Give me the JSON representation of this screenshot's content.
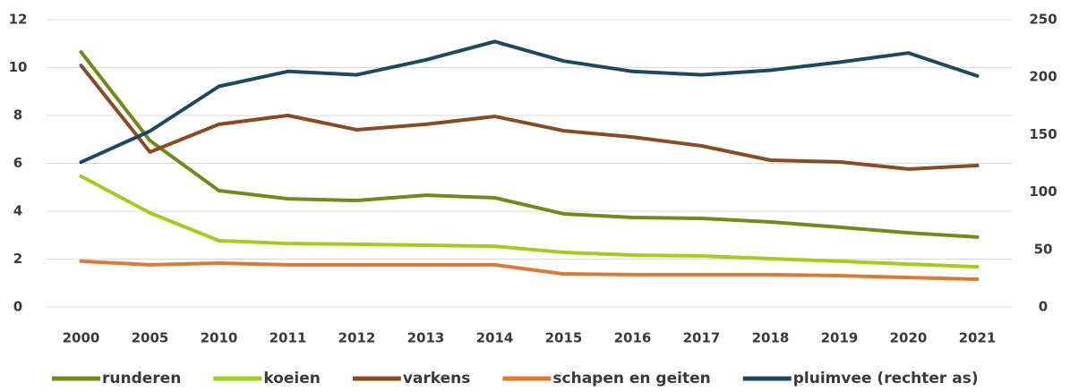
{
  "chart_data": {
    "type": "line",
    "categories": [
      "2000",
      "2005",
      "2010",
      "2011",
      "2012",
      "2013",
      "2014",
      "2015",
      "2016",
      "2017",
      "2018",
      "2019",
      "2020",
      "2021"
    ],
    "series": [
      {
        "name": "runderen",
        "color": "#718c16",
        "values": [
          10.65,
          6.95,
          4.86,
          4.52,
          4.45,
          4.67,
          4.56,
          3.89,
          3.74,
          3.7,
          3.55,
          3.33,
          3.1,
          2.92
        ]
      },
      {
        "name": "koeien",
        "color": "#a5cc19",
        "values": [
          5.46,
          3.93,
          2.77,
          2.65,
          2.62,
          2.58,
          2.54,
          2.28,
          2.17,
          2.13,
          2.02,
          1.91,
          1.79,
          1.68
        ]
      },
      {
        "name": "varkens",
        "color": "#8b4a1f",
        "values": [
          10.09,
          6.47,
          7.63,
          8.0,
          7.4,
          7.63,
          7.96,
          7.36,
          7.1,
          6.73,
          6.13,
          6.06,
          5.76,
          5.91
        ]
      },
      {
        "name": "schapen en geiten",
        "color": "#dd7a32",
        "values": [
          1.91,
          1.76,
          1.83,
          1.76,
          1.76,
          1.76,
          1.76,
          1.38,
          1.35,
          1.35,
          1.35,
          1.31,
          1.23,
          1.16
        ]
      },
      {
        "name": "pluimvee (rechter as)",
        "color": "#1b4a5e",
        "axis": "y2",
        "values": [
          126,
          153,
          192,
          205,
          202,
          215,
          231,
          214,
          205,
          202,
          206,
          213,
          221,
          201
        ]
      }
    ],
    "ylim": [
      0,
      12
    ],
    "yticks": [
      0,
      2,
      4,
      6,
      8,
      10,
      12
    ],
    "y2lim": [
      0,
      250
    ],
    "y2ticks": [
      0,
      50,
      100,
      150,
      200,
      250
    ],
    "grid": true,
    "legend": "bottom"
  }
}
